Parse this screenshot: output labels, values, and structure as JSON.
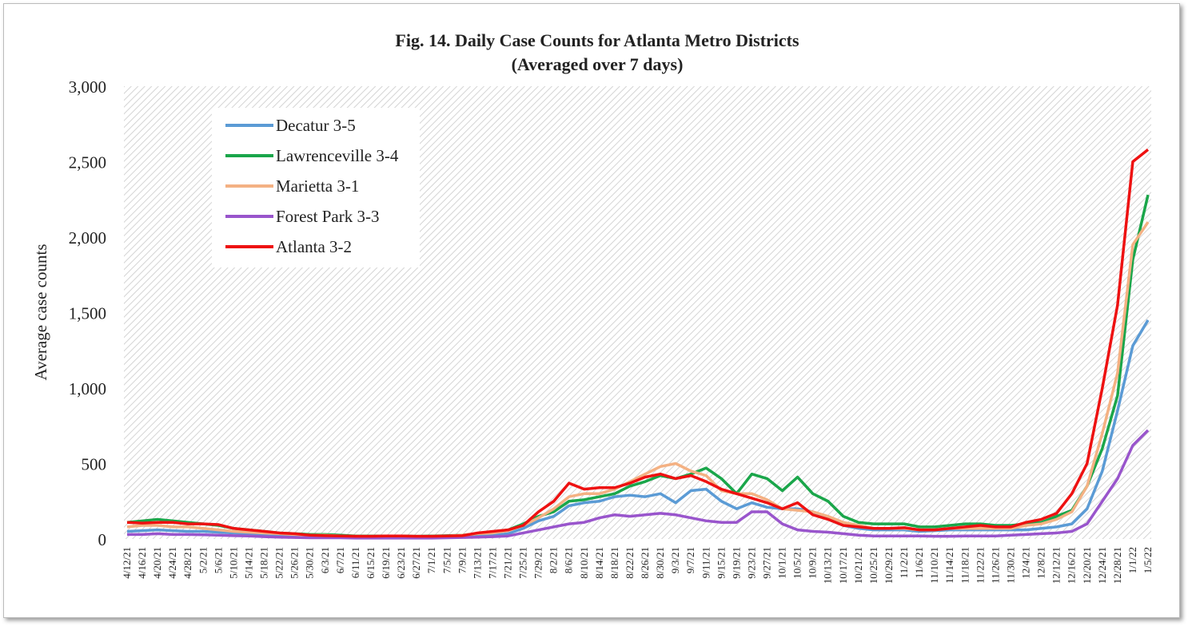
{
  "chart_data": {
    "type": "line",
    "title": "Fig. 14. Daily Case Counts for Atlanta Metro Districts",
    "subtitle": "(Averaged over 7 days)",
    "y_label": "Average case counts",
    "categories": [
      "4/12/21",
      "4/16/21",
      "4/20/21",
      "4/24/21",
      "4/28/21",
      "5/2/21",
      "5/6/21",
      "5/10/21",
      "5/14/21",
      "5/18/21",
      "5/22/21",
      "5/26/21",
      "5/30/21",
      "6/3/21",
      "6/7/21",
      "6/11/21",
      "6/15/21",
      "6/19/21",
      "6/23/21",
      "6/27/21",
      "7/1/21",
      "7/5/21",
      "7/9/21",
      "7/13/21",
      "7/17/21",
      "7/21/21",
      "7/25/21",
      "7/29/21",
      "8/2/21",
      "8/6/21",
      "8/10/21",
      "8/14/21",
      "8/18/21",
      "8/22/21",
      "8/26/21",
      "8/30/21",
      "9/3/21",
      "9/7/21",
      "9/11/21",
      "9/15/21",
      "9/19/21",
      "9/23/21",
      "9/27/21",
      "10/1/21",
      "10/5/21",
      "10/9/21",
      "10/13/21",
      "10/17/21",
      "10/21/21",
      "10/25/21",
      "10/29/21",
      "11/2/21",
      "11/6/21",
      "11/10/21",
      "11/14/21",
      "11/18/21",
      "11/22/21",
      "11/26/21",
      "11/30/21",
      "12/4/21",
      "12/8/21",
      "12/12/21",
      "12/16/21",
      "12/20/21",
      "12/24/21",
      "12/28/21",
      "1/1/22",
      "1/5/22"
    ],
    "series": [
      {
        "name": "Decatur 3-5",
        "color": "#5b9bd5",
        "values": [
          50,
          55,
          60,
          55,
          50,
          50,
          45,
          40,
          35,
          30,
          25,
          20,
          18,
          15,
          15,
          12,
          12,
          12,
          12,
          10,
          12,
          12,
          15,
          20,
          25,
          35,
          70,
          120,
          150,
          220,
          240,
          250,
          280,
          290,
          280,
          300,
          240,
          320,
          330,
          250,
          200,
          240,
          210,
          200,
          200,
          180,
          130,
          90,
          70,
          60,
          60,
          60,
          50,
          55,
          60,
          60,
          60,
          60,
          60,
          60,
          70,
          80,
          100,
          200,
          450,
          850,
          1280,
          1450
        ]
      },
      {
        "name": "Lawrenceville 3-4",
        "color": "#1aa64a",
        "values": [
          110,
          120,
          130,
          120,
          110,
          100,
          90,
          70,
          60,
          50,
          40,
          35,
          30,
          30,
          25,
          20,
          20,
          20,
          20,
          18,
          20,
          22,
          25,
          35,
          45,
          60,
          100,
          150,
          180,
          250,
          260,
          280,
          300,
          350,
          380,
          420,
          400,
          430,
          470,
          400,
          300,
          430,
          400,
          320,
          410,
          300,
          250,
          150,
          110,
          100,
          100,
          100,
          80,
          80,
          90,
          100,
          100,
          90,
          90,
          100,
          110,
          150,
          190,
          350,
          600,
          950,
          1850,
          2280
        ]
      },
      {
        "name": "Marietta 3-1",
        "color": "#f4b183",
        "values": [
          80,
          90,
          90,
          80,
          80,
          70,
          60,
          50,
          45,
          40,
          35,
          30,
          25,
          25,
          20,
          18,
          18,
          18,
          18,
          15,
          18,
          20,
          25,
          35,
          40,
          55,
          90,
          140,
          200,
          280,
          300,
          300,
          330,
          380,
          430,
          480,
          500,
          450,
          420,
          320,
          300,
          300,
          260,
          200,
          190,
          180,
          150,
          110,
          90,
          70,
          70,
          70,
          60,
          60,
          70,
          70,
          70,
          70,
          70,
          90,
          100,
          130,
          180,
          350,
          700,
          1100,
          1950,
          2100
        ]
      },
      {
        "name": "Forest Park 3-3",
        "color": "#9955cc",
        "values": [
          30,
          30,
          35,
          30,
          30,
          28,
          25,
          22,
          20,
          15,
          12,
          10,
          8,
          8,
          8,
          6,
          6,
          6,
          6,
          6,
          6,
          8,
          10,
          12,
          15,
          20,
          40,
          60,
          80,
          100,
          110,
          140,
          160,
          150,
          160,
          170,
          160,
          140,
          120,
          110,
          110,
          180,
          180,
          100,
          60,
          50,
          45,
          35,
          25,
          20,
          20,
          20,
          20,
          18,
          18,
          20,
          20,
          20,
          25,
          30,
          35,
          40,
          50,
          100,
          250,
          400,
          620,
          720
        ]
      },
      {
        "name": "Atlanta 3-2",
        "color": "#ee1111",
        "values": [
          110,
          105,
          110,
          110,
          100,
          100,
          95,
          70,
          60,
          50,
          40,
          35,
          25,
          22,
          20,
          18,
          18,
          20,
          20,
          18,
          18,
          20,
          22,
          40,
          50,
          60,
          90,
          180,
          250,
          370,
          330,
          340,
          340,
          370,
          410,
          430,
          400,
          420,
          380,
          330,
          300,
          270,
          240,
          200,
          240,
          160,
          130,
          90,
          80,
          70,
          70,
          75,
          60,
          60,
          70,
          80,
          90,
          80,
          80,
          110,
          130,
          170,
          300,
          500,
          1000,
          1550,
          2500,
          2580
        ]
      }
    ],
    "ylim": [
      0,
      3000
    ],
    "yticks": [
      0,
      500,
      {
        "value": 1000,
        "label": "1,000"
      },
      {
        "value": 1500,
        "label": "1,500"
      },
      {
        "value": 2000,
        "label": "2,000"
      },
      {
        "value": 2500,
        "label": "2,500"
      },
      {
        "value": 3000,
        "label": "3,000"
      }
    ],
    "legend": "upper left"
  }
}
